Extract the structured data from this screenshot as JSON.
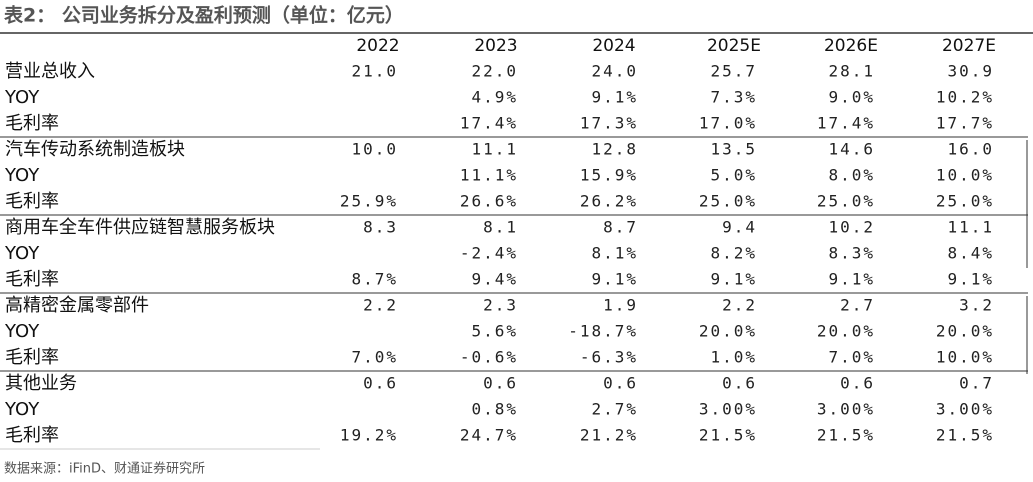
{
  "header": {
    "title": "表2： 公司业务拆分及盈利预测（单位：亿元）"
  },
  "table": {
    "columns": [
      "2022",
      "2023",
      "2024",
      "2025E",
      "2026E",
      "2027E"
    ],
    "rows": [
      {
        "label": "营业总收入",
        "cells": [
          "21.0",
          "22.0",
          "24.0",
          "25.7",
          "28.1",
          "30.9"
        ]
      },
      {
        "label": "YOY",
        "cells": [
          null,
          "4.9%",
          "9.1%",
          "7.3%",
          "9.0%",
          "10.2%"
        ]
      },
      {
        "label": "毛利率",
        "cells": [
          null,
          "17.4%",
          "17.3%",
          "17.0%",
          "17.4%",
          "17.7%"
        ]
      },
      {
        "label": "汽车传动系统制造板块",
        "cells": [
          "10.0",
          "11.1",
          "12.8",
          "13.5",
          "14.6",
          "16.0"
        ]
      },
      {
        "label": "YOY",
        "cells": [
          null,
          "11.1%",
          "15.9%",
          "5.0%",
          "8.0%",
          "10.0%"
        ]
      },
      {
        "label": "毛利率",
        "cells": [
          "25.9%",
          "26.6%",
          "26.2%",
          "25.0%",
          "25.0%",
          "25.0%"
        ]
      },
      {
        "label": "商用车全车件供应链智慧服务板块",
        "cells": [
          "8.3",
          "8.1",
          "8.7",
          "9.4",
          "10.2",
          "11.1"
        ]
      },
      {
        "label": "YOY",
        "cells": [
          null,
          "-2.4%",
          "8.1%",
          "8.2%",
          "8.3%",
          "8.4%"
        ]
      },
      {
        "label": "毛利率",
        "cells": [
          "8.7%",
          "9.4%",
          "9.1%",
          "9.1%",
          "9.1%",
          "9.1%"
        ]
      },
      {
        "label": "高精密金属零部件",
        "cells": [
          "2.2",
          "2.3",
          "1.9",
          "2.2",
          "2.7",
          "3.2"
        ]
      },
      {
        "label": "YOY",
        "cells": [
          null,
          "5.6%",
          "-18.7%",
          "20.0%",
          "20.0%",
          "20.0%"
        ]
      },
      {
        "label": "毛利率",
        "cells": [
          "7.0%",
          "-0.6%",
          "-6.3%",
          "1.0%",
          "7.0%",
          "10.0%"
        ]
      },
      {
        "label": "其他业务",
        "cells": [
          "0.6",
          "0.6",
          "0.6",
          "0.6",
          "0.6",
          "0.7"
        ]
      },
      {
        "label": "YOY",
        "cells": [
          null,
          "0.8%",
          "2.7%",
          "3.00%",
          "3.00%",
          "3.00%"
        ]
      },
      {
        "label": "毛利率",
        "cells": [
          "19.2%",
          "24.7%",
          "21.2%",
          "21.5%",
          "21.5%",
          "21.5%"
        ]
      }
    ]
  },
  "source": "数据来源：iFinD、财通证券研究所"
}
